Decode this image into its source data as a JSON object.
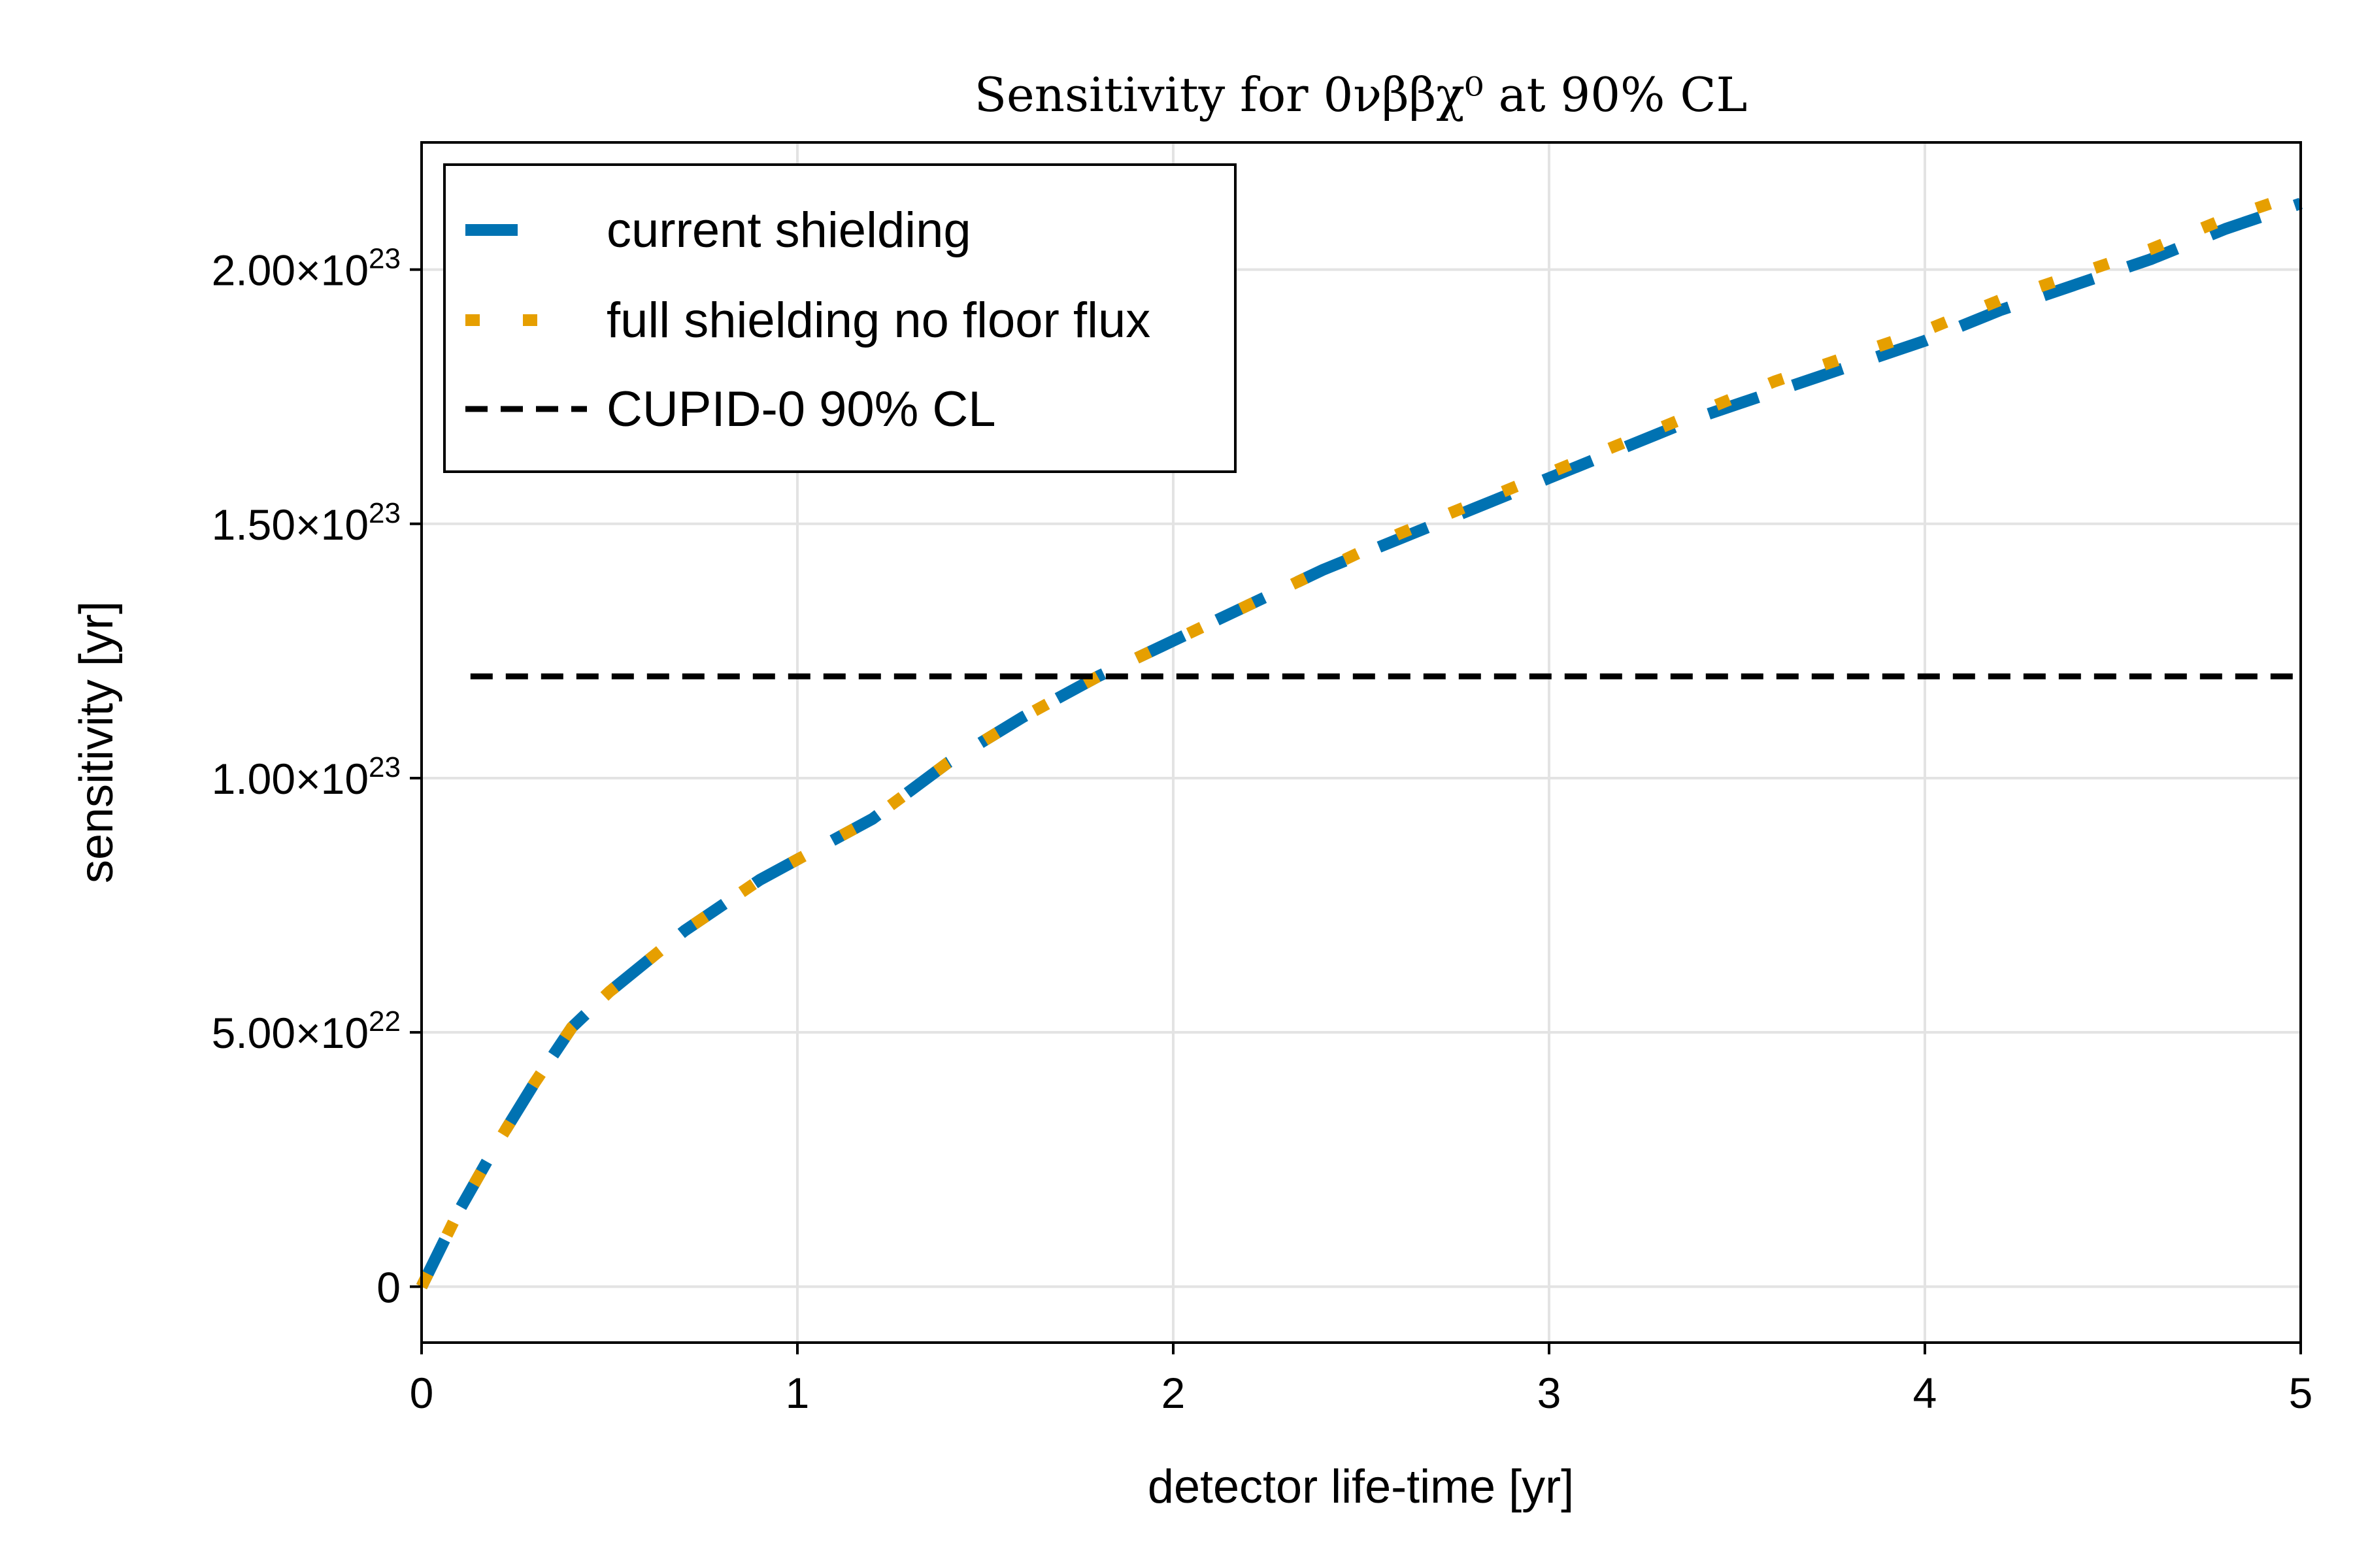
{
  "chart_data": {
    "type": "line",
    "title": "Sensitivity for 0νββχ⁰ at 90% CL",
    "xlabel": "detector life-time [yr]",
    "ylabel": "sensitivity [yr]",
    "xlim": [
      0,
      5
    ],
    "ylim": [
      -1.1e+22,
      2.25e+23
    ],
    "xticks": [
      0,
      1,
      2,
      3,
      4,
      5
    ],
    "xtick_labels": [
      "0",
      "1",
      "2",
      "3",
      "4",
      "5"
    ],
    "yticks": [
      0,
      5e+22,
      1e+23,
      1.5e+23,
      2e+23
    ],
    "ytick_labels": [
      {
        "mantissa": "0",
        "exp": ""
      },
      {
        "mantissa": "5.00×10",
        "exp": "22"
      },
      {
        "mantissa": "1.00×10",
        "exp": "23"
      },
      {
        "mantissa": "1.50×10",
        "exp": "23"
      },
      {
        "mantissa": "2.00×10",
        "exp": "23"
      }
    ],
    "grid": true,
    "legend_position": "top-left",
    "series": [
      {
        "name": "current shielding",
        "style": "dashed",
        "color": "#0072b2",
        "x": [
          0,
          0.1,
          0.2,
          0.3,
          0.4,
          0.5,
          0.6,
          0.7,
          0.8,
          0.9,
          1.0,
          1.2,
          1.4,
          1.6,
          1.8,
          2.0,
          2.2,
          2.4,
          2.6,
          2.8,
          3.0,
          3.2,
          3.4,
          3.6,
          3.8,
          4.0,
          4.2,
          4.4,
          4.6,
          4.8,
          5.0
        ],
        "y": [
          0,
          1.5e+22,
          2.8e+22,
          4e+22,
          5.1e+22,
          5.8e+22,
          6.4e+22,
          7e+22,
          7.5e+22,
          8e+22,
          8.4e+22,
          9.2e+22,
          1.03e+23,
          1.12e+23,
          1.2e+23,
          1.27e+23,
          1.34e+23,
          1.41e+23,
          1.47e+23,
          1.53e+23,
          1.59e+23,
          1.65e+23,
          1.71e+23,
          1.76e+23,
          1.81e+23,
          1.86e+23,
          1.92e+23,
          1.97e+23,
          2.02e+23,
          2.08e+23,
          2.13e+23
        ]
      },
      {
        "name": "full shielding no floor flux",
        "style": "dotted",
        "color": "#e69f00",
        "x": [
          0,
          0.1,
          0.2,
          0.3,
          0.4,
          0.5,
          0.6,
          0.7,
          0.8,
          0.9,
          1.0,
          1.2,
          1.4,
          1.6,
          1.8,
          2.0,
          2.2,
          2.4,
          2.6,
          2.8,
          3.0,
          3.2,
          3.4,
          3.6,
          3.8,
          4.0,
          4.2,
          4.4,
          4.6,
          4.8,
          5.0
        ],
        "y": [
          0,
          1.5e+22,
          2.8e+22,
          4e+22,
          5.1e+22,
          5.8e+22,
          6.4e+22,
          7e+22,
          7.5e+22,
          8e+22,
          8.4e+22,
          9.2e+22,
          1.03e+23,
          1.12e+23,
          1.2e+23,
          1.27e+23,
          1.34e+23,
          1.41e+23,
          1.48e+23,
          1.54e+23,
          1.6e+23,
          1.66e+23,
          1.72e+23,
          1.78e+23,
          1.83e+23,
          1.88e+23,
          1.94e+23,
          1.99e+23,
          2.04e+23,
          2.1e+23,
          2.15e+23
        ]
      },
      {
        "name": "CUPID-0 90% CL",
        "style": "dashed-thin",
        "color": "#000000",
        "x": [
          0.13,
          5.0
        ],
        "y": [
          1.2e+23,
          1.2e+23
        ]
      }
    ]
  }
}
